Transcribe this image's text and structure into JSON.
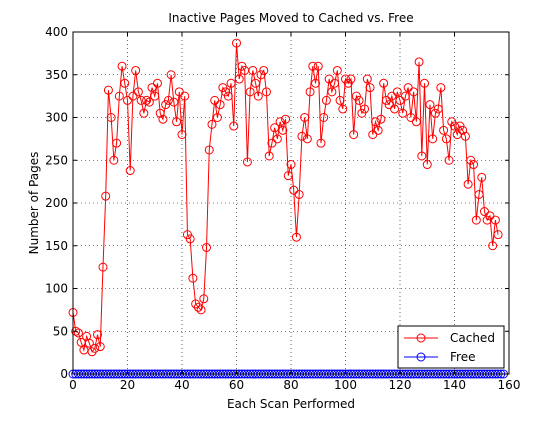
{
  "chart_data": {
    "type": "line",
    "title": "Inactive Pages Moved to Cached vs. Free",
    "xlabel": "Each Scan Performed",
    "ylabel": "Number of Pages",
    "xlim": [
      0,
      160
    ],
    "ylim": [
      0,
      400
    ],
    "xticks": [
      0,
      20,
      40,
      60,
      80,
      100,
      120,
      140,
      160
    ],
    "yticks": [
      0,
      50,
      100,
      150,
      200,
      250,
      300,
      350,
      400
    ],
    "grid": true,
    "legend_position": "bottom-right",
    "marker": "circle",
    "series": [
      {
        "name": "Cached",
        "color": "#ff0000",
        "values": [
          72,
          50,
          48,
          37,
          28,
          44,
          36,
          26,
          30,
          46,
          32,
          125,
          208,
          332,
          300,
          250,
          270,
          325,
          360,
          340,
          320,
          238,
          325,
          355,
          330,
          320,
          305,
          320,
          318,
          335,
          325,
          340,
          305,
          298,
          315,
          320,
          350,
          318,
          295,
          330,
          280,
          325,
          163,
          158,
          112,
          82,
          78,
          75,
          88,
          148,
          262,
          292,
          320,
          300,
          315,
          335,
          330,
          325,
          340,
          290,
          387,
          345,
          360,
          355,
          248,
          330,
          355,
          340,
          325,
          350,
          355,
          330,
          255,
          270,
          288,
          275,
          295,
          285,
          298,
          232,
          245,
          215,
          160,
          210,
          278,
          300,
          275,
          330,
          360,
          340,
          360,
          270,
          300,
          320,
          345,
          330,
          340,
          355,
          320,
          310,
          345,
          340,
          345,
          280,
          325,
          320,
          305,
          310,
          345,
          335,
          280,
          295,
          285,
          298,
          340,
          320,
          315,
          325,
          310,
          330,
          320,
          305,
          325,
          335,
          300,
          330,
          295,
          365,
          255,
          340,
          245,
          315,
          275,
          305,
          310,
          335,
          285,
          275,
          250,
          295,
          290,
          280,
          290,
          285,
          278,
          222,
          250,
          245,
          180,
          210,
          230,
          190,
          180,
          185,
          150,
          180,
          163
        ]
      },
      {
        "name": "Free",
        "color": "#0000ff",
        "values": [
          0,
          0,
          0,
          0,
          0,
          0,
          0,
          0,
          0,
          0,
          0,
          0,
          0,
          0,
          0,
          0,
          0,
          0,
          0,
          0,
          0,
          0,
          0,
          0,
          0,
          0,
          0,
          0,
          0,
          0,
          0,
          0,
          0,
          0,
          0,
          0,
          0,
          0,
          0,
          0,
          0,
          0,
          0,
          0,
          0,
          0,
          0,
          0,
          0,
          0,
          0,
          0,
          0,
          0,
          0,
          0,
          0,
          0,
          0,
          0,
          0,
          0,
          0,
          0,
          0,
          0,
          0,
          0,
          0,
          0,
          0,
          0,
          0,
          0,
          0,
          0,
          0,
          0,
          0,
          0,
          0,
          0,
          0,
          0,
          0,
          0,
          0,
          0,
          0,
          0,
          0,
          0,
          0,
          0,
          0,
          0,
          0,
          0,
          0,
          0,
          0,
          0,
          0,
          0,
          0,
          0,
          0,
          0,
          0,
          0,
          0,
          0,
          0,
          0,
          0,
          0,
          0,
          0,
          0,
          0,
          0,
          0,
          0,
          0,
          0,
          0,
          0,
          0,
          0,
          0,
          0,
          0,
          0,
          0,
          0,
          0,
          0,
          0,
          0,
          0,
          0,
          0,
          0,
          0,
          0,
          0,
          0,
          0,
          0,
          0,
          0,
          0,
          0,
          0,
          0,
          0,
          0,
          0,
          0
        ]
      }
    ]
  }
}
